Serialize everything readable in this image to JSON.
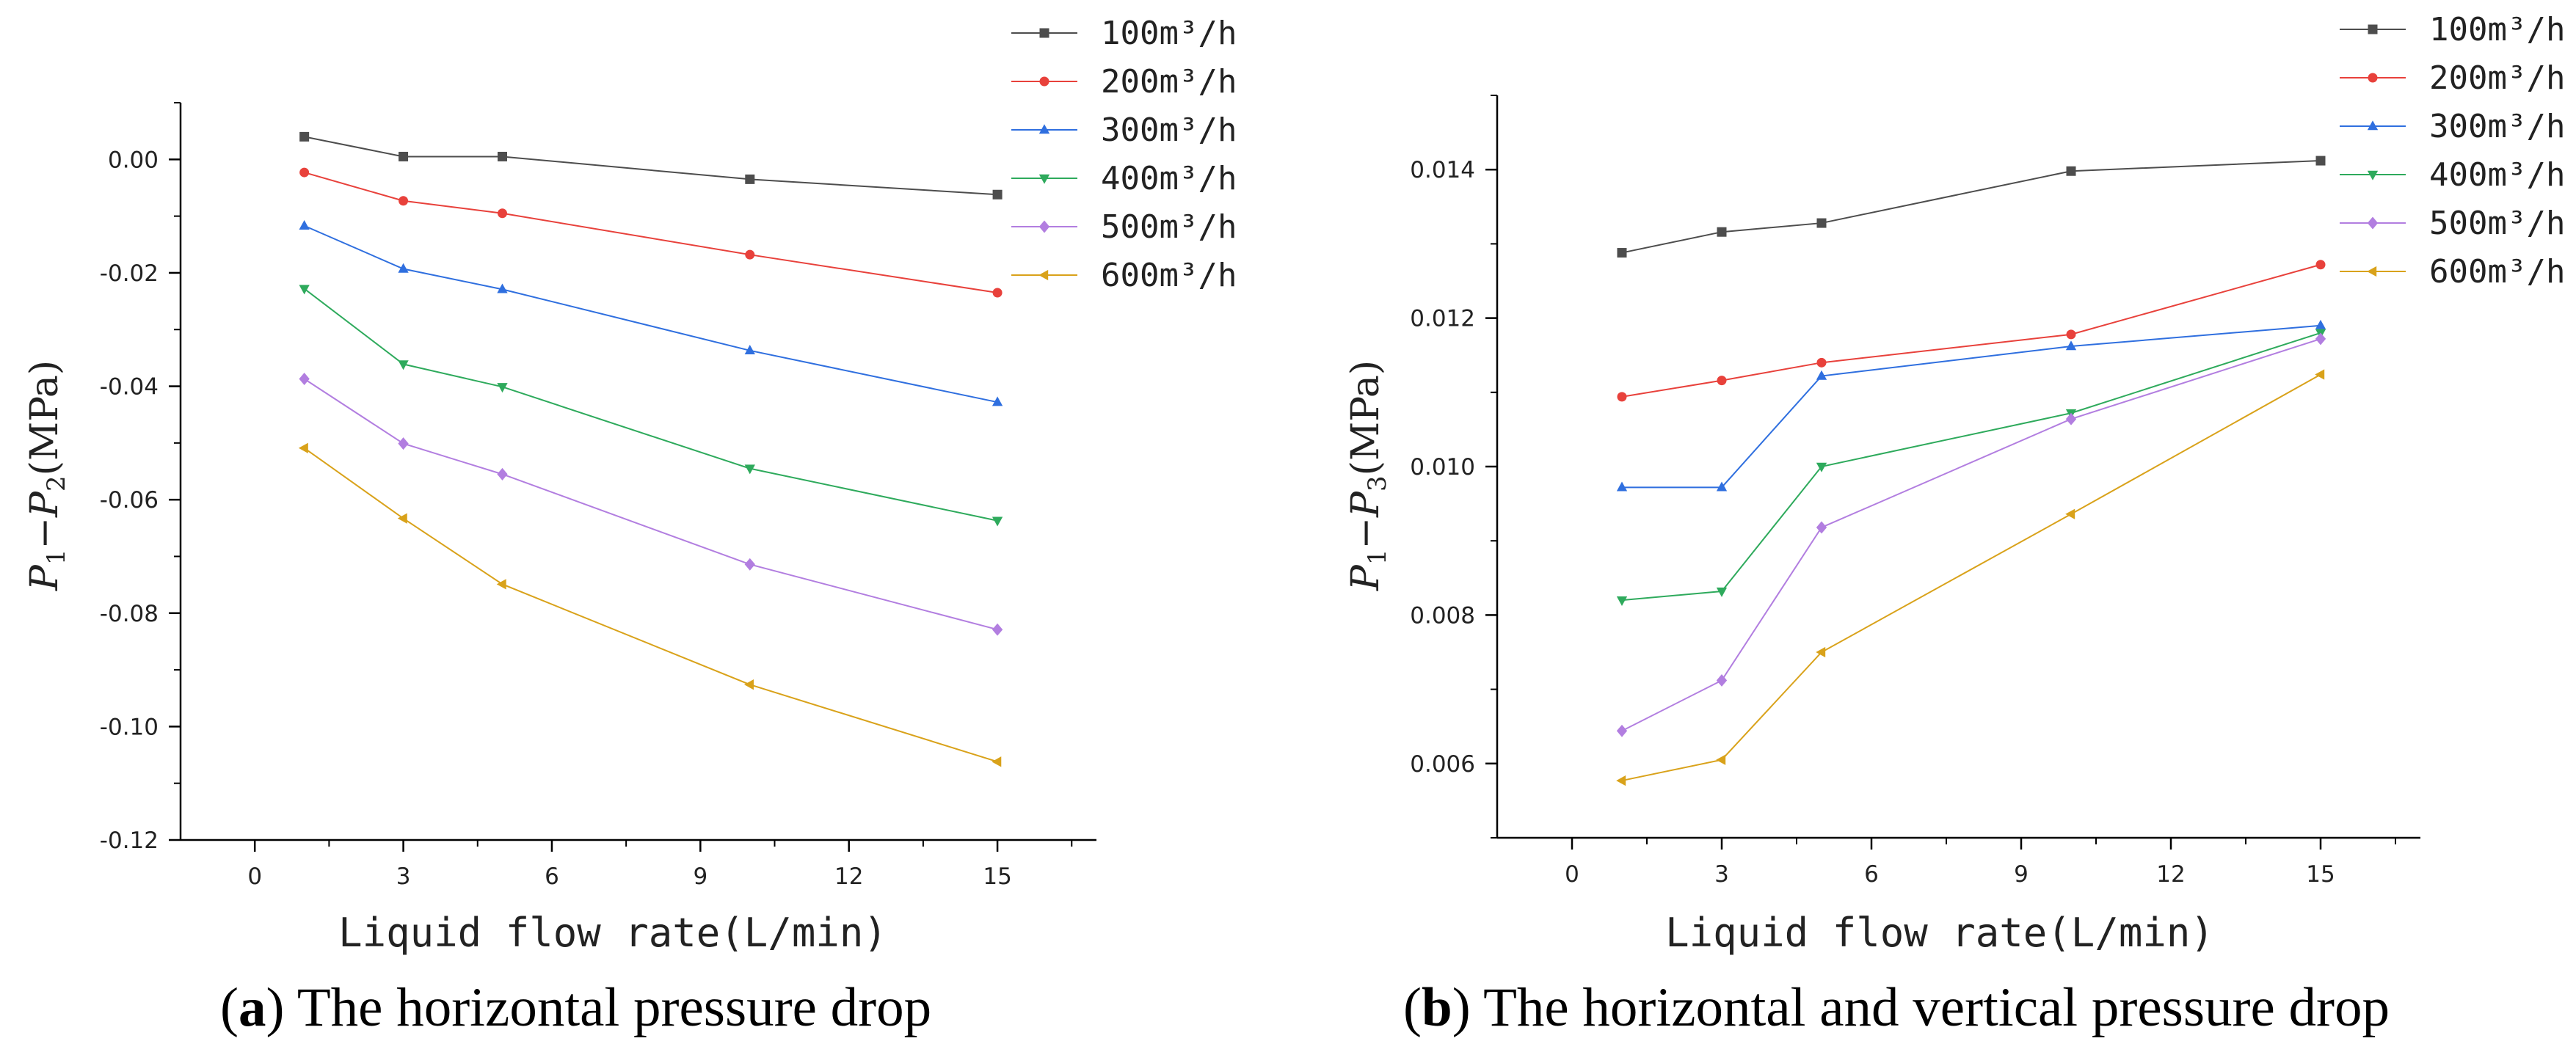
{
  "chart_data": [
    {
      "type": "line",
      "caption": {
        "letter": "a",
        "text": "The horizontal pressure drop"
      },
      "xlabel": "Liquid flow rate(L/min)",
      "ylabel": {
        "p1": "P",
        "sub1": "1",
        "op": "−",
        "p2": "P",
        "sub2": "2",
        "unit": "(MPa)"
      },
      "x": [
        1,
        3,
        5,
        10,
        15
      ],
      "xlim": [
        -1.5,
        17
      ],
      "xticks": [
        0,
        3,
        6,
        9,
        12,
        15
      ],
      "xtick_labels": [
        "0",
        "3",
        "6",
        "9",
        "12",
        "15"
      ],
      "ylim": [
        -0.12,
        0.01
      ],
      "yticks": [
        0,
        -0.02,
        -0.04,
        -0.06,
        -0.08,
        -0.1,
        -0.12
      ],
      "ytick_labels": [
        "0.00",
        "-0.02",
        "-0.04",
        "-0.06",
        "-0.08",
        "-0.10",
        "-0.12"
      ],
      "grid": false,
      "legend_position": "top-right",
      "series": [
        {
          "name": "100m³/h",
          "marker": "square",
          "color": "#4d4d4d",
          "values": [
            0.004,
            0.0005,
            0.0005,
            -0.0035,
            -0.0062
          ]
        },
        {
          "name": "200m³/h",
          "marker": "circle",
          "color": "#e8413b",
          "values": [
            -0.0023,
            -0.0073,
            -0.0095,
            -0.0168,
            -0.0235
          ]
        },
        {
          "name": "300m³/h",
          "marker": "triangle-up",
          "color": "#2f6fdf",
          "values": [
            -0.0117,
            -0.0193,
            -0.0229,
            -0.0337,
            -0.0428
          ]
        },
        {
          "name": "400m³/h",
          "marker": "triangle-down",
          "color": "#2eaa5c",
          "values": [
            -0.0228,
            -0.0361,
            -0.0401,
            -0.0545,
            -0.0637
          ]
        },
        {
          "name": "500m³/h",
          "marker": "diamond",
          "color": "#b27ee0",
          "values": [
            -0.0387,
            -0.0501,
            -0.0555,
            -0.0714,
            -0.0829
          ]
        },
        {
          "name": "600m³/h",
          "marker": "triangle-left",
          "color": "#d9a21a",
          "values": [
            -0.0509,
            -0.0633,
            -0.0749,
            -0.0926,
            -0.1062
          ]
        }
      ]
    },
    {
      "type": "line",
      "caption": {
        "letter": "b",
        "text": "The horizontal and vertical pressure drop"
      },
      "xlabel": "Liquid flow rate(L/min)",
      "ylabel": {
        "p1": "P",
        "sub1": "1",
        "op": "−",
        "p2": "P",
        "sub2": "3",
        "unit": "(MPa)"
      },
      "x": [
        1,
        3,
        5,
        10,
        15
      ],
      "xlim": [
        -1.5,
        17
      ],
      "xticks": [
        0,
        3,
        6,
        9,
        12,
        15
      ],
      "xtick_labels": [
        "0",
        "3",
        "6",
        "9",
        "12",
        "15"
      ],
      "ylim": [
        0.005,
        0.015
      ],
      "yticks": [
        0.006,
        0.008,
        0.01,
        0.012,
        0.014
      ],
      "ytick_labels": [
        "0.006",
        "0.008",
        "0.010",
        "0.012",
        "0.014"
      ],
      "grid": false,
      "legend_position": "top-right",
      "series": [
        {
          "name": "100m³/h",
          "marker": "square",
          "color": "#4d4d4d",
          "values": [
            0.01288,
            0.01316,
            0.01328,
            0.01398,
            0.01412
          ]
        },
        {
          "name": "200m³/h",
          "marker": "circle",
          "color": "#e8413b",
          "values": [
            0.01094,
            0.01116,
            0.0114,
            0.01178,
            0.01272
          ]
        },
        {
          "name": "300m³/h",
          "marker": "triangle-up",
          "color": "#2f6fdf",
          "values": [
            0.00972,
            0.00972,
            0.01122,
            0.01162,
            0.0119
          ]
        },
        {
          "name": "400m³/h",
          "marker": "triangle-down",
          "color": "#2eaa5c",
          "values": [
            0.0082,
            0.00832,
            0.01,
            0.01072,
            0.0118
          ]
        },
        {
          "name": "500m³/h",
          "marker": "diamond",
          "color": "#b27ee0",
          "values": [
            0.00644,
            0.00712,
            0.00918,
            0.01064,
            0.01172
          ]
        },
        {
          "name": "600m³/h",
          "marker": "triangle-left",
          "color": "#d9a21a",
          "values": [
            0.00577,
            0.00605,
            0.0075,
            0.00936,
            0.01124
          ]
        }
      ]
    }
  ]
}
